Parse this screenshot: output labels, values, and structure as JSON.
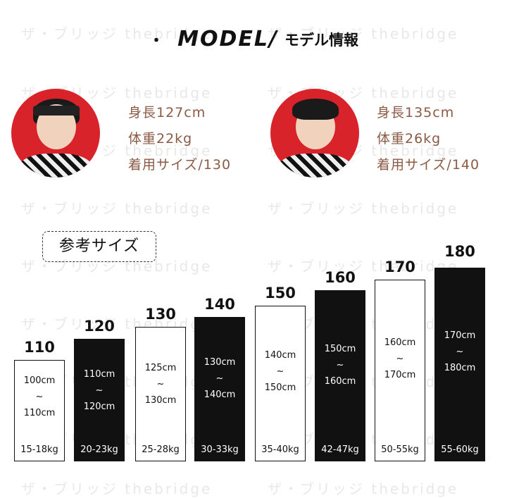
{
  "watermark": "ザ・ブリッジ thebridge",
  "title": {
    "dot": "・",
    "en": "MODEL/",
    "jp": "モデル情報"
  },
  "models": [
    {
      "height": "身長127cm",
      "weight": "体重22kg",
      "size": "着用サイズ/130"
    },
    {
      "height": "身長135cm",
      "weight": "体重26kg",
      "size": "着用サイズ/140"
    }
  ],
  "ref_label": "参考サイズ",
  "sizes": [
    {
      "label": "110",
      "range_from": "100cm",
      "range_to": "110cm",
      "tilde": "~",
      "kg": "15-18kg",
      "style": "white"
    },
    {
      "label": "120",
      "range_from": "110cm",
      "range_to": "120cm",
      "tilde": "~",
      "kg": "20-23kg",
      "style": "black"
    },
    {
      "label": "130",
      "range_from": "125cm",
      "range_to": "130cm",
      "tilde": "~",
      "kg": "25-28kg",
      "style": "white"
    },
    {
      "label": "140",
      "range_from": "130cm",
      "range_to": "140cm",
      "tilde": "~",
      "kg": "30-33kg",
      "style": "black"
    },
    {
      "label": "150",
      "range_from": "140cm",
      "range_to": "150cm",
      "tilde": "~",
      "kg": "35-40kg",
      "style": "white"
    },
    {
      "label": "160",
      "range_from": "150cm",
      "range_to": "160cm",
      "tilde": "~",
      "kg": "42-47kg",
      "style": "black"
    },
    {
      "label": "170",
      "range_from": "160cm",
      "range_to": "170cm",
      "tilde": "~",
      "kg": "50-55kg",
      "style": "white"
    },
    {
      "label": "180",
      "range_from": "170cm",
      "range_to": "180cm",
      "tilde": "~",
      "kg": "55-60kg",
      "style": "black"
    }
  ]
}
